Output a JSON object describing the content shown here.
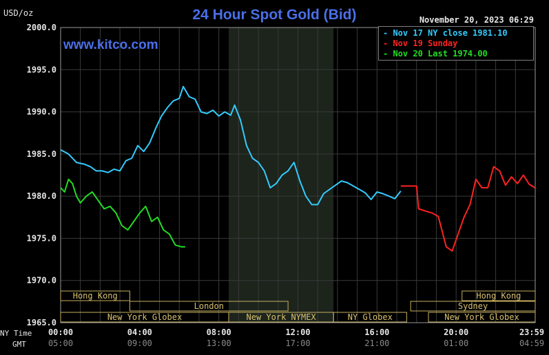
{
  "header": {
    "title": "24 Hour Spot Gold (Bid)",
    "website": "www.kitco.com",
    "unit": "USD/oz",
    "datetime": "November 20, 2023 06:29"
  },
  "legend": [
    {
      "text": "Nov 17 NY close 1981.10",
      "color": "#33ccff"
    },
    {
      "text": "Nov 19 Sunday",
      "color": "#ff2222"
    },
    {
      "text": "Nov 20 Last 1974.00",
      "color": "#22dd22"
    }
  ],
  "axis": {
    "row_labels": {
      "ny": "NY Time",
      "gmt": "GMT"
    }
  },
  "chart_data": {
    "type": "line",
    "title": "24 Hour Spot Gold (Bid)",
    "ylabel": "USD/oz",
    "ylim": [
      1965.0,
      2000.0
    ],
    "y_ticks": [
      "2000.0",
      "1995.0",
      "1990.0",
      "1985.0",
      "1980.0",
      "1975.0",
      "1970.0",
      "1965.0"
    ],
    "x_range_hours": [
      0,
      24
    ],
    "x_ticks_ny": [
      "00:00",
      "04:00",
      "08:00",
      "12:00",
      "16:00",
      "20:00",
      "23:59"
    ],
    "x_ticks_gmt": [
      "05:00",
      "09:00",
      "13:00",
      "17:00",
      "21:00",
      "01:00",
      "04:59"
    ],
    "grid": true,
    "legend_position": "top-right",
    "shaded_band_hours": [
      8.5,
      13.8
    ],
    "series": [
      {
        "name": "Nov 17 NY close 1981.10",
        "color": "#33ccff",
        "x": [
          0,
          0.4,
          0.8,
          1.2,
          1.5,
          1.8,
          2.1,
          2.4,
          2.7,
          3.0,
          3.3,
          3.6,
          3.9,
          4.2,
          4.5,
          4.8,
          5.1,
          5.4,
          5.7,
          6.0,
          6.2,
          6.5,
          6.8,
          7.1,
          7.4,
          7.7,
          8.0,
          8.3,
          8.6,
          8.8,
          9.1,
          9.4,
          9.7,
          10.0,
          10.3,
          10.6,
          10.9,
          11.2,
          11.5,
          11.8,
          12.1,
          12.4,
          12.7,
          13.0,
          13.3,
          13.6,
          13.9,
          14.2,
          14.5,
          14.8,
          15.1,
          15.4,
          15.7,
          16.0,
          16.3,
          16.6,
          16.9,
          17.2
        ],
        "y": [
          1985.5,
          1985.0,
          1984.0,
          1983.8,
          1983.5,
          1983.0,
          1983.0,
          1982.8,
          1983.2,
          1983.0,
          1984.2,
          1984.5,
          1986.0,
          1985.3,
          1986.3,
          1988.0,
          1989.5,
          1990.5,
          1991.3,
          1991.6,
          1993.0,
          1991.8,
          1991.5,
          1990.0,
          1989.8,
          1990.2,
          1989.5,
          1990.0,
          1989.6,
          1990.8,
          1989.0,
          1986.0,
          1984.5,
          1984.0,
          1983.0,
          1981.0,
          1981.5,
          1982.5,
          1983.0,
          1984.0,
          1981.8,
          1980.0,
          1979.0,
          1979.0,
          1980.3,
          1980.8,
          1981.3,
          1981.8,
          1981.6,
          1981.2,
          1980.8,
          1980.4,
          1979.6,
          1980.5,
          1980.3,
          1980.0,
          1979.7,
          1980.6
        ]
      },
      {
        "name": "Nov 19 Sunday",
        "color": "#ff2222",
        "x": [
          17.2,
          18.0,
          18.1,
          18.5,
          18.8,
          19.1,
          19.5,
          19.8,
          20.1,
          20.4,
          20.7,
          21.0,
          21.3,
          21.6,
          21.9,
          22.2,
          22.5,
          22.8,
          23.1,
          23.4,
          23.7,
          23.99
        ],
        "y": [
          1981.2,
          1981.2,
          1978.5,
          1978.2,
          1978.0,
          1977.6,
          1974.0,
          1973.5,
          1975.5,
          1977.5,
          1979.0,
          1982.0,
          1981.0,
          1981.0,
          1983.5,
          1983.0,
          1981.3,
          1982.3,
          1981.5,
          1982.5,
          1981.4,
          1981.0
        ]
      },
      {
        "name": "Nov 20 Last 1974.00",
        "color": "#22dd22",
        "x": [
          0,
          0.2,
          0.4,
          0.6,
          0.8,
          1.0,
          1.3,
          1.6,
          1.9,
          2.2,
          2.5,
          2.8,
          3.1,
          3.4,
          3.7,
          4.0,
          4.3,
          4.6,
          4.9,
          5.2,
          5.5,
          5.8,
          6.1,
          6.3
        ],
        "y": [
          1981.0,
          1980.5,
          1982.0,
          1981.5,
          1980.0,
          1979.2,
          1980.0,
          1980.5,
          1979.5,
          1978.5,
          1978.8,
          1978.0,
          1976.5,
          1976.0,
          1977.0,
          1978.0,
          1978.8,
          1977.0,
          1977.5,
          1976.0,
          1975.5,
          1974.2,
          1974.0,
          1974.0
        ]
      }
    ],
    "sessions": [
      {
        "label": "Hong Kong",
        "start": 0,
        "end": 3.5
      },
      {
        "label": "London",
        "start": 3.5,
        "end": 11.5
      },
      {
        "label": "New York Globex",
        "start": 0,
        "end": 8.5
      },
      {
        "label": "New York NYMEX",
        "start": 8.5,
        "end": 13.8
      },
      {
        "label": "NY Globex",
        "start": 13.8,
        "end": 17.5
      },
      {
        "label": "Hong Kong",
        "start": 20.3,
        "end": 24
      },
      {
        "label": "Sydney",
        "start": 17.7,
        "end": 24
      },
      {
        "label": "New York Globex",
        "start": 18.6,
        "end": 24
      }
    ]
  }
}
